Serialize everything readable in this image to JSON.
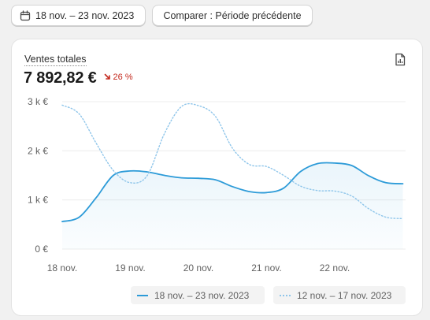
{
  "toolbar": {
    "date_range_label": "18 nov. – 23 nov. 2023",
    "compare_label": "Comparer : Période précédente"
  },
  "card": {
    "metric_label": "Ventes totales",
    "metric_value": "7 892,82 €",
    "trend_text": "26 %",
    "trend_direction": "down",
    "trend_color": "#c42a1f"
  },
  "icons": {
    "calendar": "calendar-icon",
    "export": "export-report-icon",
    "trend": "arrow-down-right-icon"
  },
  "chart_data": {
    "type": "line",
    "xlabel": "",
    "ylabel": "",
    "x_tick_labels": [
      "18 nov.",
      "19 nov.",
      "20 nov.",
      "21 nov.",
      "22 nov."
    ],
    "y_tick_labels": [
      "0 €",
      "1 k €",
      "2 k €",
      "3 k €"
    ],
    "ylim": [
      0,
      3000
    ],
    "grid": "horizontal",
    "legend_position": "bottom-right",
    "series": [
      {
        "name": "18 nov. – 23 nov. 2023",
        "style": "solid",
        "area_fill": true,
        "color": "#2d9bd8",
        "x": [
          0,
          0.25,
          0.5,
          0.75,
          1,
          1.25,
          1.5,
          1.75,
          2,
          2.25,
          2.5,
          2.75,
          3,
          3.25,
          3.5,
          3.75,
          4,
          4.25,
          4.5,
          4.75,
          5
        ],
        "values": [
          560,
          650,
          1050,
          1500,
          1590,
          1570,
          1500,
          1450,
          1440,
          1410,
          1270,
          1170,
          1150,
          1240,
          1580,
          1740,
          1750,
          1700,
          1490,
          1350,
          1330
        ]
      },
      {
        "name": "12 nov. – 17 nov. 2023",
        "style": "dotted",
        "area_fill": false,
        "color": "#8ec5ea",
        "x": [
          0,
          0.25,
          0.5,
          0.75,
          1,
          1.25,
          1.5,
          1.75,
          2,
          2.25,
          2.5,
          2.75,
          3,
          3.25,
          3.5,
          3.75,
          4,
          4.25,
          4.5,
          4.75,
          5
        ],
        "values": [
          2930,
          2750,
          2150,
          1600,
          1350,
          1500,
          2350,
          2900,
          2920,
          2700,
          2050,
          1720,
          1680,
          1500,
          1280,
          1190,
          1180,
          1080,
          820,
          650,
          620
        ]
      }
    ]
  }
}
